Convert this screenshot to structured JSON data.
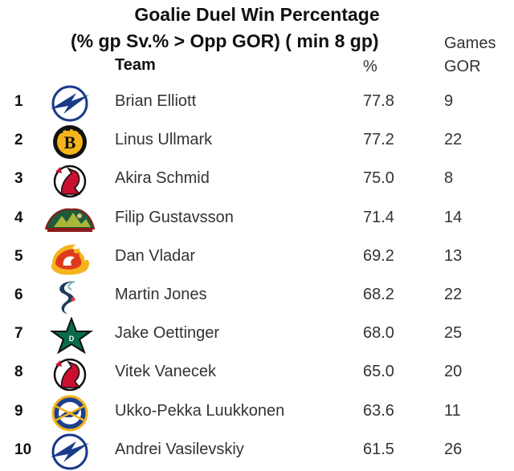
{
  "title": {
    "line1": "Goalie Duel Win Percentage",
    "line2": "(% gp Sv.% > Opp GOR) ( min 8 gp)"
  },
  "headers": {
    "team": "Team",
    "games": "Games",
    "pct": "%",
    "gor": "GOR"
  },
  "rows": [
    {
      "rank": "1",
      "name": "Brian Elliott",
      "pct": "77.8",
      "gor": "9",
      "logo": "lightning-logo-icon"
    },
    {
      "rank": "2",
      "name": "Linus Ullmark",
      "pct": "77.2",
      "gor": "22",
      "logo": "bruins-logo-icon"
    },
    {
      "rank": "3",
      "name": "Akira Schmid",
      "pct": "75.0",
      "gor": "8",
      "logo": "devils-logo-icon"
    },
    {
      "rank": "4",
      "name": "Filip Gustavsson",
      "pct": "71.4",
      "gor": "14",
      "logo": "wild-logo-icon"
    },
    {
      "rank": "5",
      "name": "Dan Vladar",
      "pct": "69.2",
      "gor": "13",
      "logo": "flames-logo-icon"
    },
    {
      "rank": "6",
      "name": "Martin Jones",
      "pct": "68.2",
      "gor": "22",
      "logo": "kraken-logo-icon"
    },
    {
      "rank": "7",
      "name": "Jake Oettinger",
      "pct": "68.0",
      "gor": "25",
      "logo": "stars-logo-icon"
    },
    {
      "rank": "8",
      "name": "Vitek Vanecek",
      "pct": "65.0",
      "gor": "20",
      "logo": "devils-logo-icon"
    },
    {
      "rank": "9",
      "name": "Ukko-Pekka Luukkonen",
      "pct": "63.6",
      "gor": "11",
      "logo": "sabres-logo-icon"
    },
    {
      "rank": "10",
      "name": "Andrei Vasilevskiy",
      "pct": "61.5",
      "gor": "26",
      "logo": "lightning-logo-icon"
    }
  ],
  "chart_data": {
    "type": "table",
    "title": "Goalie Duel Win Percentage",
    "subtitle": "(% gp Sv.% > Opp GOR) ( min 8 gp)",
    "columns": [
      "Team",
      "%",
      "Games GOR"
    ],
    "rows": [
      [
        "Brian Elliott",
        77.8,
        9
      ],
      [
        "Linus Ullmark",
        77.2,
        22
      ],
      [
        "Akira Schmid",
        75.0,
        8
      ],
      [
        "Filip Gustavsson",
        71.4,
        14
      ],
      [
        "Dan Vladar",
        69.2,
        13
      ],
      [
        "Martin Jones",
        68.2,
        22
      ],
      [
        "Jake Oettinger",
        68.0,
        25
      ],
      [
        "Vitek Vanecek",
        65.0,
        20
      ],
      [
        "Ukko-Pekka Luukkonen",
        63.6,
        11
      ],
      [
        "Andrei Vasilevskiy",
        61.5,
        26
      ]
    ]
  },
  "colors": {
    "lightning": "#1a3a8a",
    "bruins": "#f5b41a",
    "devils": "#c8102e",
    "wild": "#1e5a3a",
    "flames": "#e03a1e",
    "kraken": "#1e3a5a",
    "stars": "#0b6b48",
    "sabres": "#1d3f8e"
  }
}
